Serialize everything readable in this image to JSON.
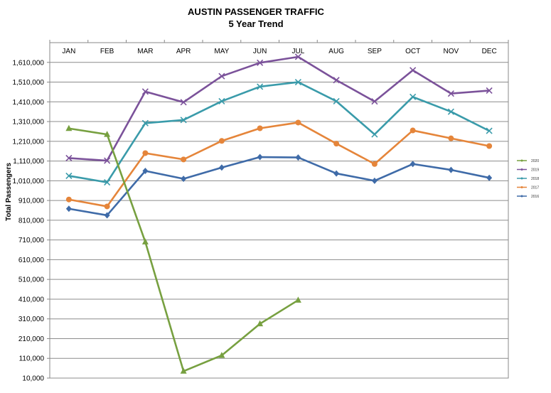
{
  "chart_data": {
    "type": "line",
    "title": "AUSTIN PASSENGER TRAFFIC",
    "subtitle": "5 Year Trend",
    "xlabel": "",
    "ylabel": "Total Passengers",
    "categories": [
      "JAN",
      "FEB",
      "MAR",
      "APR",
      "MAY",
      "JUN",
      "JUL",
      "AUG",
      "SEP",
      "OCT",
      "NOV",
      "DEC"
    ],
    "ylim": [
      10000,
      1710000
    ],
    "yticks": [
      10000,
      110000,
      210000,
      310000,
      410000,
      510000,
      610000,
      710000,
      810000,
      910000,
      1010000,
      1110000,
      1210000,
      1310000,
      1410000,
      1510000,
      1610000
    ],
    "ytick_labels": [
      "10,000",
      "110,000",
      "210,000",
      "310,000",
      "410,000",
      "510,000",
      "610,000",
      "710,000",
      "810,000",
      "910,000",
      "1,010,000",
      "1,110,000",
      "1,210,000",
      "1,310,000",
      "1,410,000",
      "1,510,000",
      "1,610,000"
    ],
    "grid": true,
    "legend_position": "right",
    "series": [
      {
        "name": "2020",
        "color": "#77A040",
        "marker": "triangle",
        "values": [
          1275000,
          1245000,
          700000,
          45000,
          125000,
          285000,
          405000,
          null,
          null,
          null,
          null,
          null
        ]
      },
      {
        "name": "2019",
        "color": "#7B529A",
        "marker": "x",
        "values": [
          1125000,
          1112000,
          1462000,
          1408000,
          1540000,
          1608000,
          1638000,
          1520000,
          1412000,
          1570000,
          1452000,
          1467000
        ]
      },
      {
        "name": "2018",
        "color": "#3A9BAA",
        "marker": "x",
        "values": [
          1035000,
          1002000,
          1302000,
          1318000,
          1413000,
          1487000,
          1510000,
          1413000,
          1245000,
          1435000,
          1360000,
          1263000
        ]
      },
      {
        "name": "2017",
        "color": "#E5853A",
        "marker": "circle",
        "values": [
          915000,
          880000,
          1150000,
          1118000,
          1212000,
          1276000,
          1305000,
          1198000,
          1095000,
          1265000,
          1225000,
          1186000
        ]
      },
      {
        "name": "2016",
        "color": "#3F6BA8",
        "marker": "diamond",
        "values": [
          868000,
          835000,
          1060000,
          1020000,
          1077000,
          1130000,
          1128000,
          1047000,
          1010000,
          1095000,
          1065000,
          1025000
        ]
      }
    ]
  }
}
